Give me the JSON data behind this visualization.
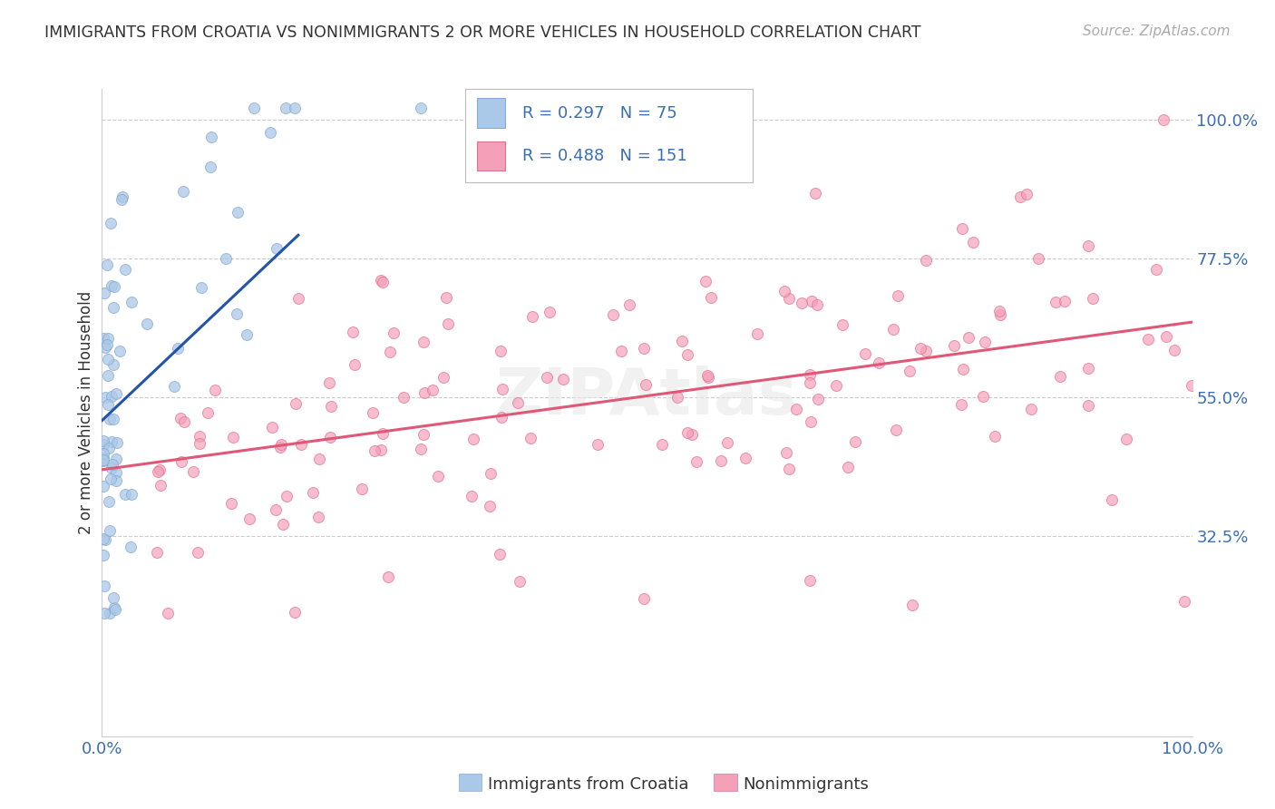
{
  "title": "IMMIGRANTS FROM CROATIA VS NONIMMIGRANTS 2 OR MORE VEHICLES IN HOUSEHOLD CORRELATION CHART",
  "source": "Source: ZipAtlas.com",
  "ylabel": "2 or more Vehicles in Household",
  "blue_label": "Immigrants from Croatia",
  "pink_label": "Nonimmigrants",
  "legend_line1": "R = 0.297   N = 75",
  "legend_line2": "R = 0.488   N = 151",
  "n_blue": 75,
  "n_pink": 151,
  "blue_scatter_color": "#aac8e8",
  "blue_edge_color": "#88aad0",
  "pink_scatter_color": "#f4a0b8",
  "pink_edge_color": "#e07090",
  "blue_line_color": "#2255aa",
  "pink_line_color": "#e05878",
  "legend_text_color": "#3a6eb5",
  "title_color": "#333333",
  "source_color": "#aaaaaa",
  "axis_tick_color": "#3a6eb5",
  "ytick_values": [
    32.5,
    55.0,
    77.5,
    100.0
  ],
  "ytick_labels": [
    "32.5%",
    "55.0%",
    "77.5%",
    "100.0%"
  ],
  "xtick_values": [
    0,
    100
  ],
  "xtick_labels": [
    "0.0%",
    "100.0%"
  ],
  "xlim": [
    0,
    100
  ],
  "ylim": [
    0,
    105
  ],
  "grid_color": "#cccccc",
  "background_color": "#ffffff",
  "watermark": "ZIPAtlas"
}
